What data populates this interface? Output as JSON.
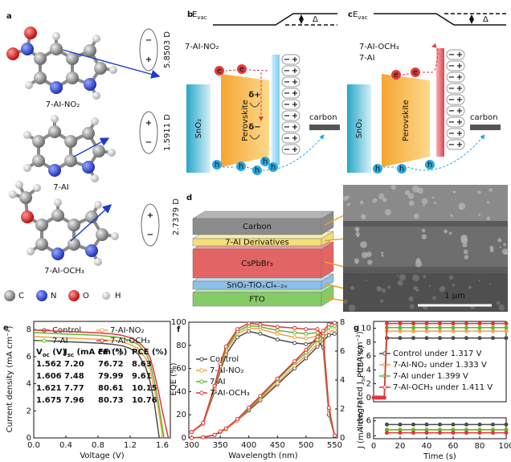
{
  "panel_a": {
    "letter": "a",
    "plus": "+",
    "minus": "−",
    "molecules": [
      {
        "label": "7-AI-NO₂",
        "dipole": "5.8503 D"
      },
      {
        "label": "7-AI",
        "dipole": "1.5911 D"
      },
      {
        "label": "7-AI-OCH₃",
        "dipole": "2.7379 D"
      }
    ],
    "atoms": [
      "C",
      "N",
      "O",
      "H"
    ]
  },
  "panel_b": {
    "letter": "b",
    "evac": {
      "main": "E",
      "sub": "vac"
    },
    "delta": "Δ",
    "molecule": "7-AI-NO₂",
    "sno2": "SnO₂",
    "perovskite": "Perovskite",
    "carbon": "carbon",
    "electron": "e",
    "hole": "h",
    "delta_plus": "δ+",
    "delta_minus": "δ−",
    "plus": "+",
    "minus": "−"
  },
  "panel_c": {
    "letter": "c",
    "evac": {
      "main": "E",
      "sub": "vac"
    },
    "delta": "Δ",
    "molecules": [
      "7-AI-OCH₃",
      "7-AI"
    ],
    "sno2": "SnO₂",
    "perovskite": "Perovskite",
    "carbon": "carbon",
    "electron": "e",
    "hole": "h",
    "plus": "+",
    "minus": "−"
  },
  "panel_d": {
    "letter": "d",
    "layers": [
      "Carbon",
      "7-AI Derivatives",
      "CsPbBr₃",
      "SnO₂-TiOₓCl₄₋₂ₓ",
      "FTO"
    ],
    "scale_bar": "1 μm"
  },
  "chart_data": [
    {
      "letter": "e",
      "type": "line",
      "xlabel": "Voltage (V)",
      "ylabel": "Current density (mA cm⁻²)",
      "xlim": [
        0,
        1.7
      ],
      "ylim": [
        0,
        8.6
      ],
      "xticks": [
        {
          "value": 0,
          "label": "0.0"
        },
        0.4,
        0.8,
        1.2,
        1.6
      ],
      "yticks": [
        0,
        2,
        4,
        6,
        8
      ],
      "series": [
        {
          "name": "Control",
          "color": "#4d4d4d",
          "x": [
            0,
            0.2,
            0.4,
            0.6,
            0.8,
            1.0,
            1.1,
            1.2,
            1.3,
            1.4,
            1.45,
            1.5,
            1.562
          ],
          "values": [
            7.2,
            7.15,
            7.1,
            7.05,
            7.0,
            6.9,
            6.8,
            6.6,
            6.2,
            5.1,
            4.1,
            2.6,
            0
          ]
        },
        {
          "name": "7-AI-NO₂",
          "color": "#f5a04a",
          "x": [
            0,
            0.2,
            0.4,
            0.6,
            0.8,
            1.0,
            1.1,
            1.2,
            1.3,
            1.4,
            1.45,
            1.5,
            1.55,
            1.606
          ],
          "values": [
            7.48,
            7.43,
            7.38,
            7.33,
            7.28,
            7.18,
            7.08,
            6.9,
            6.6,
            5.8,
            5.0,
            3.6,
            2.2,
            0
          ]
        },
        {
          "name": "7-AI",
          "color": "#5cb82e",
          "x": [
            0,
            0.2,
            0.4,
            0.6,
            0.8,
            1.0,
            1.1,
            1.2,
            1.3,
            1.4,
            1.45,
            1.5,
            1.55,
            1.621
          ],
          "values": [
            7.77,
            7.72,
            7.67,
            7.62,
            7.57,
            7.47,
            7.37,
            7.2,
            6.9,
            6.2,
            5.5,
            4.2,
            2.7,
            0
          ]
        },
        {
          "name": "7-AI-OCH₃",
          "color": "#e8323a",
          "x": [
            0,
            0.2,
            0.4,
            0.6,
            0.8,
            1.0,
            1.1,
            1.2,
            1.3,
            1.4,
            1.45,
            1.5,
            1.55,
            1.6,
            1.675
          ],
          "values": [
            7.96,
            7.91,
            7.86,
            7.81,
            7.76,
            7.66,
            7.56,
            7.4,
            7.1,
            6.5,
            5.9,
            4.8,
            3.5,
            2.0,
            0
          ]
        }
      ],
      "table": {
        "columns": [
          {
            "main": "V",
            "sub": "oc",
            "rest": " (V)"
          },
          {
            "main": "J",
            "sub": "sc",
            "rest": " (mA cm⁻²)"
          },
          "FF (%)",
          "PCE (%)"
        ],
        "rows": [
          [
            "1.562",
            "7.20",
            "76.72",
            "8.63"
          ],
          [
            "1.606",
            "7.48",
            "79.99",
            "9.61"
          ],
          [
            "1.621",
            "7.77",
            "80.61",
            "10.15"
          ],
          [
            "1.675",
            "7.96",
            "80.73",
            "10.76"
          ]
        ]
      }
    },
    {
      "letter": "f",
      "type": "line",
      "xlabel": "Wavelength (nm)",
      "ylabel": "EQE (%)",
      "y2label": {
        "main": "Integrated J",
        "sub": "sc",
        "rest": " (mA cm⁻²)"
      },
      "xlim": [
        295,
        555
      ],
      "ylim": [
        0,
        100
      ],
      "y2lim": [
        0,
        8
      ],
      "xticks": [
        300,
        350,
        400,
        450,
        500,
        550
      ],
      "yticks": [
        0,
        20,
        40,
        60,
        80,
        100
      ],
      "y2ticks": [
        0,
        2,
        4,
        6,
        8
      ],
      "x": [
        300,
        320,
        340,
        350,
        360,
        380,
        400,
        420,
        450,
        480,
        500,
        520,
        530,
        540,
        550
      ],
      "series": [
        {
          "name": "Control",
          "color": "#4d4d4d",
          "values": [
            5,
            12,
            40,
            58,
            72,
            87,
            92,
            90,
            85,
            82,
            81,
            84,
            78,
            20,
            2
          ],
          "values_y2": [
            0,
            0.05,
            0.2,
            0.4,
            0.6,
            1.2,
            1.9,
            2.6,
            3.7,
            4.8,
            5.5,
            6.3,
            6.7,
            7.1,
            7.2
          ]
        },
        {
          "name": "7-AI-NO₂",
          "color": "#f5a04a",
          "values": [
            5,
            12,
            42,
            60,
            75,
            90,
            95,
            94,
            90,
            87,
            86,
            88,
            82,
            22,
            2
          ],
          "values_y2": [
            0,
            0.05,
            0.2,
            0.4,
            0.6,
            1.2,
            2.0,
            2.7,
            3.8,
            5.0,
            5.7,
            6.5,
            6.9,
            7.35,
            7.45
          ]
        },
        {
          "name": "7-AI",
          "color": "#5cb82e",
          "values": [
            5,
            13,
            43,
            62,
            77,
            92,
            97,
            96,
            93,
            91,
            90,
            91,
            85,
            24,
            2
          ],
          "values_y2": [
            0,
            0.05,
            0.2,
            0.4,
            0.65,
            1.3,
            2.0,
            2.8,
            4.0,
            5.2,
            5.9,
            6.8,
            7.2,
            7.65,
            7.75
          ]
        },
        {
          "name": "7-AI-OCH₃",
          "color": "#e8323a",
          "values": [
            5,
            13,
            45,
            64,
            79,
            94,
            99,
            98,
            96,
            95,
            94,
            94,
            88,
            26,
            2
          ],
          "values_y2": [
            0,
            0.05,
            0.2,
            0.45,
            0.65,
            1.3,
            2.1,
            2.9,
            4.1,
            5.3,
            6.1,
            7.0,
            7.4,
            7.85,
            7.95
          ]
        }
      ]
    },
    {
      "letter": "g",
      "type": "line",
      "xlabel": "Time (s)",
      "ylabel": "PCE (%)",
      "y2label": "J (mA cm⁻²)",
      "y2_position": "bottom",
      "y2_inverted": true,
      "xlim": [
        0,
        100
      ],
      "ylim": [
        -0.6,
        11
      ],
      "yticks": [
        0,
        2,
        4,
        6,
        8,
        10
      ],
      "y2lim": [
        5.6,
        8.4
      ],
      "y2ticks": [
        6,
        8
      ],
      "xticks": [
        0,
        20,
        40,
        60,
        80,
        100
      ],
      "x": [
        0,
        2,
        4,
        6,
        8,
        10,
        20,
        30,
        40,
        50,
        60,
        70,
        80,
        90,
        100
      ],
      "series": [
        {
          "name": "Control under 1.317 V",
          "color": "#4d4d4d",
          "values": [
            0,
            0,
            0,
            0,
            0,
            8.6,
            8.6,
            8.6,
            8.6,
            8.6,
            8.6,
            8.6,
            8.6,
            8.6,
            8.6
          ],
          "values_y2": [
            null,
            null,
            null,
            null,
            null,
            6.5,
            6.5,
            6.5,
            6.5,
            6.5,
            6.5,
            6.5,
            6.5,
            6.5,
            6.5
          ]
        },
        {
          "name": "7-AI-NO₂ under 1.333 V",
          "color": "#f5a04a",
          "values": [
            0,
            0,
            0,
            0,
            0,
            9.6,
            9.6,
            9.6,
            9.6,
            9.6,
            9.6,
            9.6,
            9.6,
            9.6,
            9.6
          ],
          "values_y2": [
            null,
            null,
            null,
            null,
            null,
            7.2,
            7.2,
            7.2,
            7.2,
            7.2,
            7.2,
            7.2,
            7.2,
            7.2,
            7.2
          ]
        },
        {
          "name": "7-AI under 1.399 V",
          "color": "#5cb82e",
          "values": [
            0,
            0,
            0,
            0,
            0,
            10.1,
            10.1,
            10.1,
            10.1,
            10.1,
            10.1,
            10.1,
            10.1,
            10.1,
            10.1
          ],
          "values_y2": [
            null,
            null,
            null,
            null,
            null,
            7.2,
            7.2,
            7.2,
            7.2,
            7.2,
            7.2,
            7.2,
            7.2,
            7.2,
            7.2
          ]
        },
        {
          "name": "7-AI-OCH₃ under 1.411 V",
          "color": "#e8323a",
          "values": [
            0,
            0,
            0,
            0,
            0,
            10.7,
            10.7,
            10.7,
            10.7,
            10.7,
            10.7,
            10.7,
            10.7,
            10.7,
            10.7
          ],
          "values_y2": [
            null,
            null,
            null,
            null,
            null,
            7.6,
            7.6,
            7.6,
            7.6,
            7.6,
            7.6,
            7.6,
            7.6,
            7.6,
            7.6
          ]
        }
      ]
    }
  ]
}
